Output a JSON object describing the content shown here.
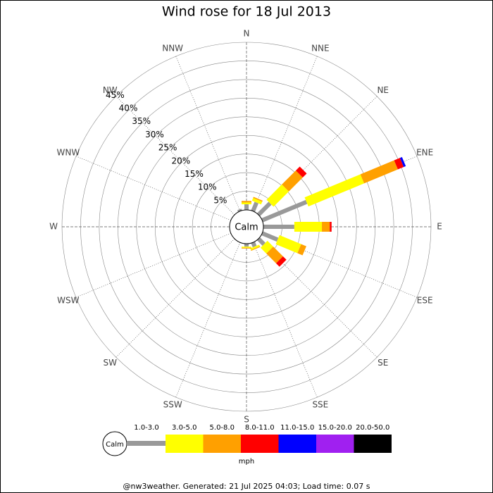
{
  "chart_data": {
    "type": "windrose",
    "title": "Wind rose for 18 Jul 2013",
    "categories": [
      "N",
      "NNE",
      "NE",
      "ENE",
      "E",
      "ESE",
      "SE",
      "SSE",
      "S",
      "SSW",
      "SW",
      "WSW",
      "W",
      "WNW",
      "NW",
      "NNW"
    ],
    "series": [
      {
        "name": "1.0-3.0",
        "color": "#999999",
        "values": [
          1.5,
          2.5,
          4.4,
          12.9,
          8.3,
          4.5,
          2.1,
          1.2,
          0.8,
          0,
          0,
          0,
          0,
          0,
          0,
          0.5
        ]
      },
      {
        "name": "3.0-5.0",
        "color": "#ffff00",
        "values": [
          0.5,
          0.8,
          5.8,
          16.2,
          7.4,
          6.3,
          2.2,
          0.5,
          0.3,
          0,
          0,
          0,
          0,
          0,
          0,
          0
        ]
      },
      {
        "name": "5.0-8.0",
        "color": "#ffa000",
        "values": [
          0.4,
          0.3,
          5.3,
          9.8,
          2.1,
          1.5,
          3.7,
          0.2,
          0.2,
          0,
          0,
          0,
          0,
          0,
          0,
          0
        ]
      },
      {
        "name": "8.0-11.0",
        "color": "#ff0000",
        "values": [
          0,
          0,
          1.5,
          1.7,
          0.5,
          0,
          1.3,
          0,
          0,
          0,
          0,
          0,
          0,
          0,
          0,
          0
        ]
      },
      {
        "name": "11.0-15.0",
        "color": "#0000ff",
        "values": [
          0,
          0,
          0,
          0.6,
          0,
          0,
          0,
          0,
          0,
          0,
          0,
          0,
          0,
          0,
          0,
          0
        ]
      },
      {
        "name": "15.0-20.0",
        "color": "#a020f0",
        "values": [
          0,
          0,
          0,
          0,
          0,
          0,
          0,
          0,
          0,
          0,
          0,
          0,
          0,
          0,
          0,
          0
        ]
      },
      {
        "name": "20.0-50.0",
        "color": "#000000",
        "values": [
          0,
          0,
          0,
          0,
          0,
          0,
          0,
          0,
          0,
          0,
          0,
          0,
          0,
          0,
          0,
          0
        ]
      }
    ],
    "ylim": [
      0,
      45
    ],
    "yticks": [
      {
        "value": 5,
        "label": "5%"
      },
      {
        "value": 10,
        "label": "10%"
      },
      {
        "value": 15,
        "label": "15%"
      },
      {
        "value": 20,
        "label": "20%"
      },
      {
        "value": 25,
        "label": "25%"
      },
      {
        "value": 30,
        "label": "30%"
      },
      {
        "value": 35,
        "label": "35%"
      },
      {
        "value": 40,
        "label": "40%"
      },
      {
        "value": 45,
        "label": "45%"
      }
    ],
    "calm_label": "Calm",
    "units": "mph",
    "footer": "@nw3weather. Generated: 21 Jul 2025 04:03; Load time: 0.07 s"
  }
}
